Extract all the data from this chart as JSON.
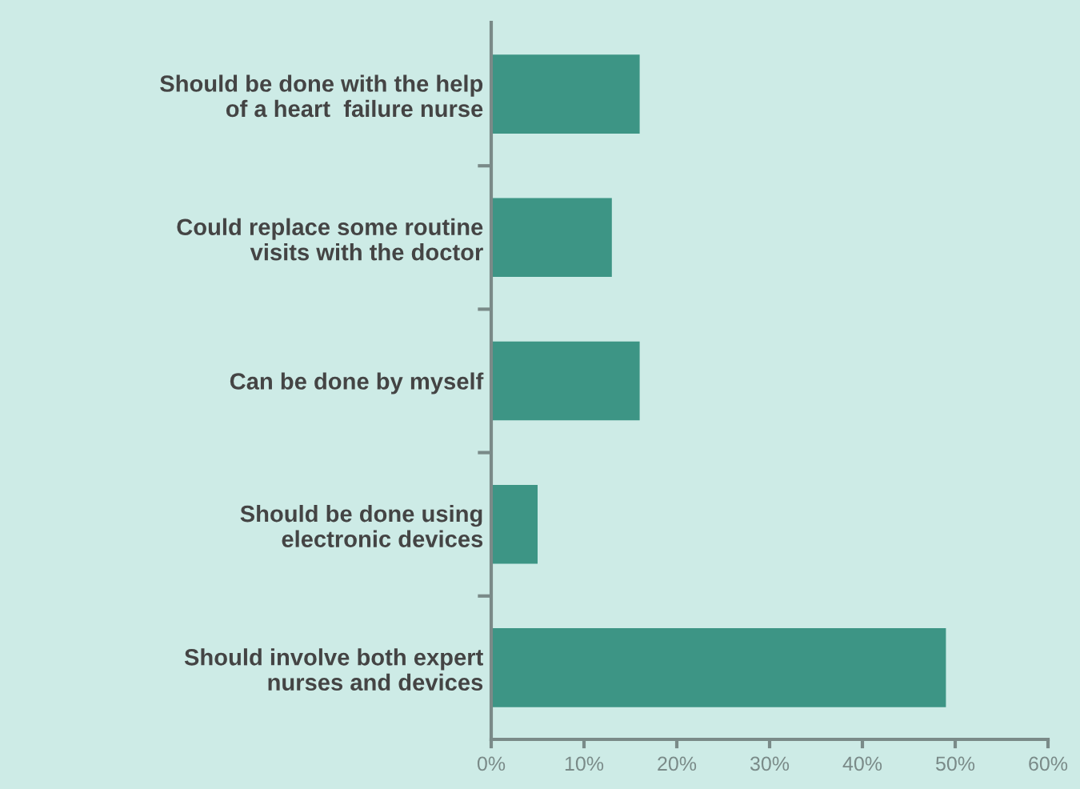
{
  "chart_data": {
    "type": "bar",
    "orientation": "horizontal",
    "categories": [
      "Should be done with the help\nof a heart  failure nurse",
      "Could replace some routine\nvisits with the doctor",
      "Can be done by myself",
      "Should be done using\nelectronic devices",
      "Should involve both expert\nnurses and devices"
    ],
    "values": [
      16,
      13,
      16,
      5,
      49
    ],
    "color": "#3d9585",
    "xlim": [
      0,
      60
    ],
    "xticks": [
      {
        "value": 0,
        "label": "0%"
      },
      {
        "value": 10,
        "label": "10%"
      },
      {
        "value": 20,
        "label": "20%"
      },
      {
        "value": 30,
        "label": "30%"
      },
      {
        "value": 40,
        "label": "40%"
      },
      {
        "value": 50,
        "label": "50%"
      },
      {
        "value": 60,
        "label": "60%"
      }
    ],
    "grid": false,
    "legend": false
  }
}
